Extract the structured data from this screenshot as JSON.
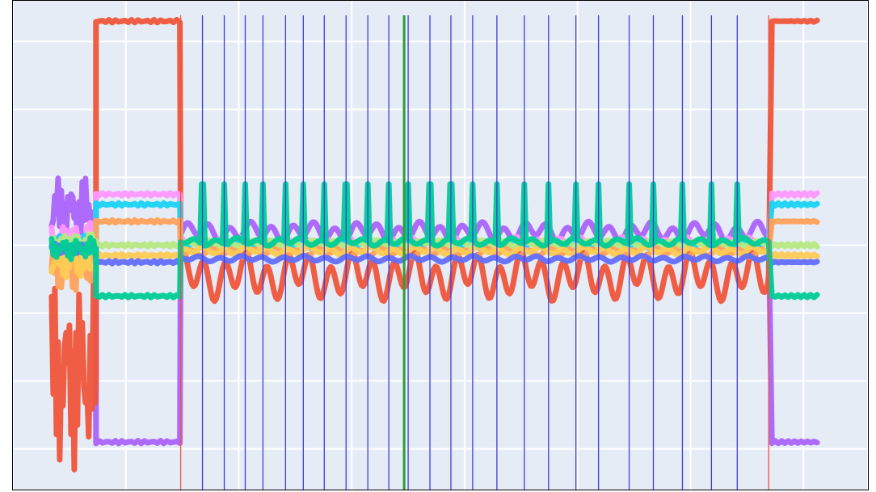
{
  "chart_data": {
    "type": "line",
    "title": "",
    "xlabel": "",
    "ylabel": "",
    "grid": true,
    "legend": "none",
    "plot_bgcolor": "#E5ECF6",
    "xlim": [
      0,
      1060
    ],
    "ylim": [
      -3.6,
      3.6
    ],
    "x_gridlines": [
      0,
      140,
      280,
      420,
      560,
      700,
      840,
      980,
      1060
    ],
    "y_gridlines": [
      -3,
      -2,
      -1,
      0,
      1,
      2,
      3
    ],
    "segments": {
      "pre_start": 48,
      "pre_end": 103,
      "high_start": 103,
      "high_end": 208,
      "steady_start": 208,
      "steady_end": 937,
      "post_start": 937,
      "post_end": 997
    },
    "markers": {
      "red_lines": [
        208,
        937
      ],
      "green_line": 485,
      "blue_lines": [
        235,
        262,
        288,
        310,
        338,
        360,
        386,
        413,
        440,
        466,
        490,
        517,
        543,
        570,
        600,
        634,
        664,
        698,
        726,
        764,
        794,
        830,
        866,
        898
      ],
      "red_color": "#EF553B",
      "green_color": "#2CA02C",
      "blue_color": "#3B3FE0"
    },
    "spikes": [
      235,
      262,
      288,
      310,
      338,
      360,
      386,
      413,
      440,
      466,
      490,
      517,
      543,
      570,
      600,
      634,
      664,
      698,
      726,
      764,
      794,
      830,
      866,
      898
    ],
    "series": [
      {
        "color": "#AB63FA",
        "pre_mean": 0.5,
        "pre_amp": 0.35,
        "high": -2.9,
        "steady": 0.2,
        "steady_amp": 0.1,
        "post": -2.9
      },
      {
        "color": "#EF553B",
        "pre_mean": -1.9,
        "pre_amp": 0.9,
        "high": 3.3,
        "steady": -0.45,
        "steady_amp": 0.25,
        "post": 3.3
      },
      {
        "color": "#FF97FF",
        "pre_mean": 0.1,
        "pre_amp": 0.15,
        "high": 0.75,
        "steady": 0.05,
        "steady_amp": 0.05,
        "post": 0.75
      },
      {
        "color": "#19D3F3",
        "pre_mean": 0.0,
        "pre_amp": 0.1,
        "high": 0.6,
        "steady": 0.02,
        "steady_amp": 0.04,
        "post": 0.6
      },
      {
        "color": "#FFA15A",
        "pre_mean": -0.3,
        "pre_amp": 0.25,
        "high": 0.35,
        "steady": -0.1,
        "steady_amp": 0.05,
        "post": 0.35
      },
      {
        "color": "#B6E880",
        "pre_mean": 0.05,
        "pre_amp": 0.08,
        "high": 0.0,
        "steady": 0.03,
        "steady_amp": 0.03,
        "post": 0.0
      },
      {
        "color": "#FECB52",
        "pre_mean": -0.25,
        "pre_amp": 0.15,
        "high": -0.15,
        "steady": -0.08,
        "steady_amp": 0.04,
        "post": -0.15
      },
      {
        "color": "#636EFA",
        "pre_mean": -0.05,
        "pre_amp": 0.05,
        "high": -0.25,
        "steady": -0.2,
        "steady_amp": 0.03,
        "post": -0.25
      },
      {
        "color": "#00CC96",
        "pre_mean": -0.05,
        "pre_amp": 0.1,
        "high": -0.75,
        "steady": 0.05,
        "steady_amp": 0.04,
        "post": -0.75,
        "spike": 0.85
      }
    ]
  }
}
